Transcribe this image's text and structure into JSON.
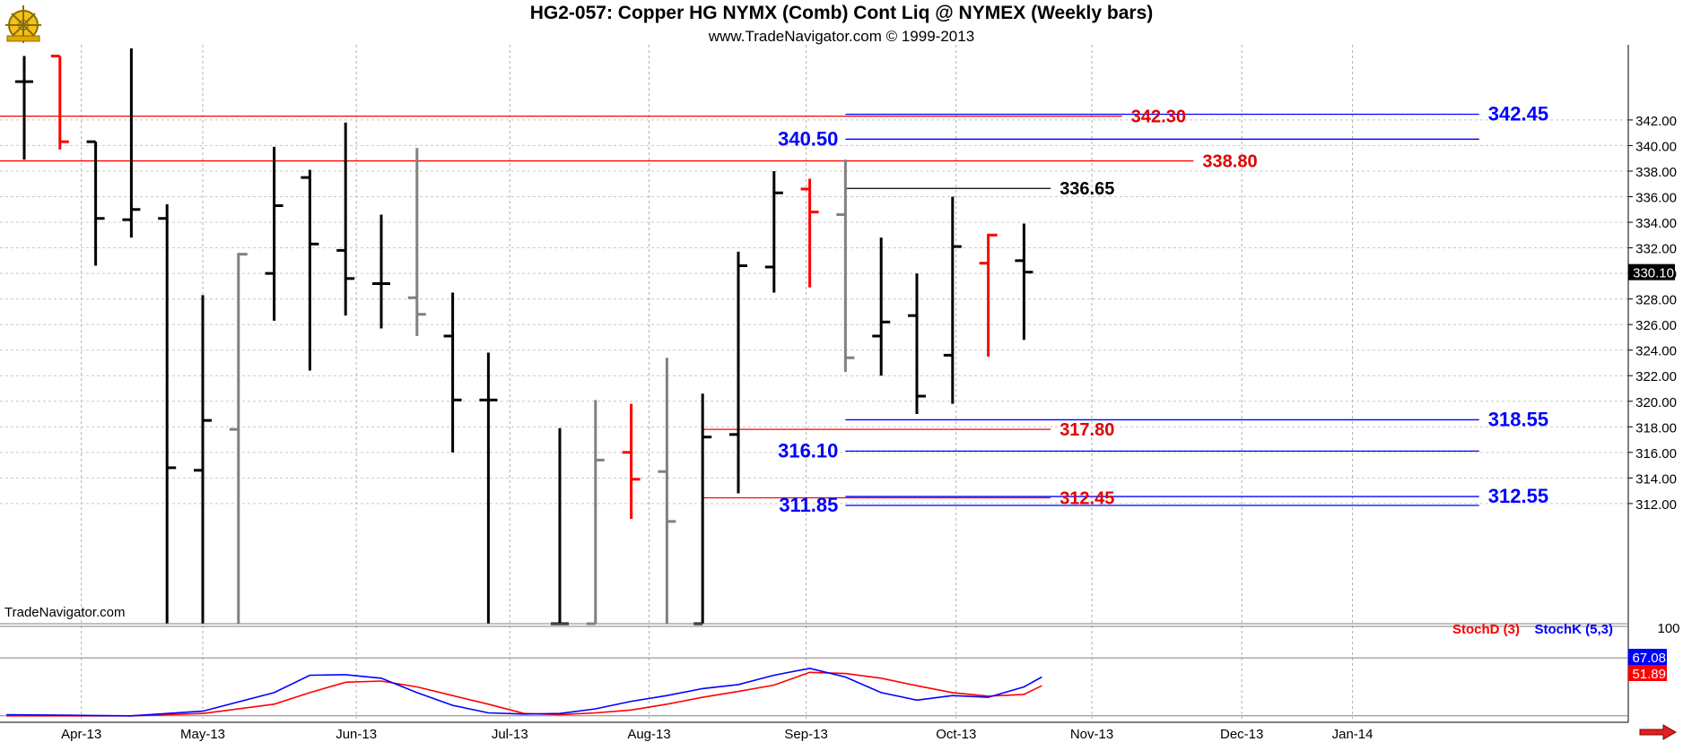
{
  "header": {
    "title": "HG2-057:  Copper HG NYMX (Comb) Cont Liq @ NYMEX  (Weekly bars)",
    "subtitle": "www.TradeNavigator.com © 1999-2013",
    "watermark": "TradeNavigator.com"
  },
  "colors": {
    "up_bar": "#000000",
    "down_bar": "#ff0000",
    "inside_bar": "#808080",
    "level_red": "#ff0000",
    "level_blue": "#0000ff",
    "stoch_d": "#ff0000",
    "stoch_k": "#0000ff"
  },
  "chart_data": [
    {
      "type": "ohlc",
      "title": "HG2-057:  Copper HG NYMX (Comb) Cont Liq @ NYMEX  (Weekly bars)",
      "ylim": [
        302.6,
        347.6
      ],
      "y_ticks": [
        "342.00",
        "340.00",
        "338.00",
        "336.00",
        "334.00",
        "332.00",
        "330.00",
        "328.00",
        "326.00",
        "324.00",
        "322.00",
        "320.00",
        "318.00",
        "316.00",
        "314.00",
        "312.00"
      ],
      "x_ticks": [
        "Apr-13",
        "May-13",
        "Jun-13",
        "Jul-13",
        "Aug-13",
        "Sep-13",
        "Oct-13",
        "Nov-13",
        "Dec-13",
        "Jan-14"
      ],
      "last_price": "330.10",
      "bars": [
        {
          "week": 0,
          "o": 345.0,
          "h": 347.0,
          "l": 338.9,
          "c": 345.0,
          "color": "up"
        },
        {
          "week": 1,
          "o": 347.0,
          "h": 347.0,
          "l": 339.7,
          "c": 340.3,
          "color": "down"
        },
        {
          "week": 2,
          "o": 340.3,
          "h": 340.3,
          "l": 330.6,
          "c": 334.3,
          "color": "up"
        },
        {
          "week": 3,
          "o": 334.2,
          "h": 347.6,
          "l": 332.8,
          "c": 335.0,
          "color": "up"
        },
        {
          "week": 4,
          "o": 334.3,
          "h": 335.4,
          "l": 302.6,
          "c": 314.8,
          "color": "up"
        },
        {
          "week": 5,
          "o": 314.6,
          "h": 328.3,
          "l": 302.6,
          "c": 318.5,
          "color": "up"
        },
        {
          "week": 6,
          "o": 317.8,
          "h": 331.6,
          "l": 302.6,
          "c": 331.5,
          "color": "inside"
        },
        {
          "week": 7,
          "o": 330.0,
          "h": 339.9,
          "l": 326.3,
          "c": 335.3,
          "color": "up"
        },
        {
          "week": 8,
          "o": 337.5,
          "h": 338.1,
          "l": 322.4,
          "c": 332.3,
          "color": "up"
        },
        {
          "week": 9,
          "o": 331.8,
          "h": 341.8,
          "l": 326.7,
          "c": 329.6,
          "color": "up"
        },
        {
          "week": 10,
          "o": 329.2,
          "h": 334.6,
          "l": 325.7,
          "c": 329.2,
          "color": "up"
        },
        {
          "week": 11,
          "o": 328.1,
          "h": 339.8,
          "l": 325.1,
          "c": 326.8,
          "color": "inside"
        },
        {
          "week": 12,
          "o": 325.1,
          "h": 328.5,
          "l": 316.0,
          "c": 320.1,
          "color": "up"
        },
        {
          "week": 13,
          "o": 320.1,
          "h": 323.8,
          "l": 302.6,
          "c": 320.1,
          "color": "up"
        },
        {
          "week": 15,
          "o": 302.6,
          "h": 317.9,
          "l": 302.6,
          "c": 302.6,
          "color": "up"
        },
        {
          "week": 16,
          "o": 302.6,
          "h": 320.1,
          "l": 302.6,
          "c": 315.4,
          "color": "inside"
        },
        {
          "week": 17,
          "o": 316.0,
          "h": 319.8,
          "l": 310.8,
          "c": 313.9,
          "color": "down"
        },
        {
          "week": 18,
          "o": 314.5,
          "h": 323.4,
          "l": 302.6,
          "c": 310.6,
          "color": "inside"
        },
        {
          "week": 19,
          "o": 302.6,
          "h": 320.6,
          "l": 302.6,
          "c": 317.2,
          "color": "up"
        },
        {
          "week": 20,
          "o": 317.4,
          "h": 331.7,
          "l": 312.8,
          "c": 330.6,
          "color": "up"
        },
        {
          "week": 21,
          "o": 330.5,
          "h": 338.0,
          "l": 328.5,
          "c": 336.3,
          "color": "up"
        },
        {
          "week": 22,
          "o": 336.6,
          "h": 337.4,
          "l": 328.9,
          "c": 334.8,
          "color": "down"
        },
        {
          "week": 23,
          "o": 334.6,
          "h": 338.9,
          "l": 322.3,
          "c": 323.4,
          "color": "inside"
        },
        {
          "week": 24,
          "o": 325.1,
          "h": 332.8,
          "l": 322.0,
          "c": 326.2,
          "color": "up"
        },
        {
          "week": 25,
          "o": 326.7,
          "h": 330.0,
          "l": 319.0,
          "c": 320.4,
          "color": "up"
        },
        {
          "week": 26,
          "o": 323.6,
          "h": 336.0,
          "l": 319.8,
          "c": 332.1,
          "color": "up"
        },
        {
          "week": 27,
          "o": 330.8,
          "h": 333.1,
          "l": 323.5,
          "c": 333.0,
          "color": "down"
        },
        {
          "week": 28,
          "o": 331.0,
          "h": 333.9,
          "l": 324.8,
          "c": 330.1,
          "color": "up"
        }
      ],
      "levels": [
        {
          "value": 342.45,
          "label": "342.45",
          "color": "blue",
          "from_week": 23,
          "to_week": 41,
          "label_at": "end"
        },
        {
          "value": 342.3,
          "label": "342.30",
          "color": "red",
          "from_week": -1,
          "to_week": 31,
          "label_at": "end"
        },
        {
          "value": 340.5,
          "label": "340.50",
          "color": "blue",
          "from_week": 23,
          "to_week": 41,
          "label_at": "start"
        },
        {
          "value": 338.8,
          "label": "338.80",
          "color": "red",
          "from_week": -1,
          "to_week": 33,
          "label_at": "end"
        },
        {
          "value": 336.65,
          "label": "336.65",
          "color": "black",
          "from_week": 23,
          "to_week": 29,
          "label_at": "end"
        },
        {
          "value": 318.55,
          "label": "318.55",
          "color": "blue",
          "from_week": 23,
          "to_week": 41,
          "label_at": "end"
        },
        {
          "value": 317.8,
          "label": "317.80",
          "color": "red",
          "from_week": 19,
          "to_week": 29,
          "label_at": "end"
        },
        {
          "value": 316.1,
          "label": "316.10",
          "color": "blue",
          "from_week": 23,
          "to_week": 41,
          "label_at": "start"
        },
        {
          "value": 312.55,
          "label": "312.55",
          "color": "blue",
          "from_week": 23,
          "to_week": 41,
          "label_at": "end"
        },
        {
          "value": 312.45,
          "label": "312.45",
          "color": "red",
          "from_week": 19,
          "to_week": 29,
          "label_at": "end"
        },
        {
          "value": 311.85,
          "label": "311.85",
          "color": "blue",
          "from_week": 23,
          "to_week": 41,
          "label_at": "start"
        }
      ]
    },
    {
      "type": "line",
      "panel": "stochastic",
      "ylim": [
        -5,
        125
      ],
      "top_label": "100",
      "series": [
        {
          "name": "StochD (3)",
          "color": "red",
          "last": "51.89",
          "values": [
            [
              -0.5,
              0
            ],
            [
              1,
              0
            ],
            [
              3,
              0
            ],
            [
              5,
              4
            ],
            [
              7,
              20
            ],
            [
              8,
              40
            ],
            [
              9,
              58
            ],
            [
              10,
              60
            ],
            [
              11,
              50
            ],
            [
              12,
              35
            ],
            [
              13,
              20
            ],
            [
              14,
              4
            ],
            [
              15,
              2
            ],
            [
              16,
              5
            ],
            [
              17,
              10
            ],
            [
              18,
              20
            ],
            [
              19,
              32
            ],
            [
              20,
              42
            ],
            [
              21,
              53
            ],
            [
              22,
              75
            ],
            [
              23,
              73
            ],
            [
              24,
              65
            ],
            [
              25,
              52
            ],
            [
              26,
              40
            ],
            [
              27,
              34
            ],
            [
              28,
              37
            ],
            [
              28.5,
              52
            ]
          ]
        },
        {
          "name": "StochK (5,3)",
          "color": "blue",
          "last": "67.08",
          "values": [
            [
              -0.5,
              2
            ],
            [
              1,
              1
            ],
            [
              3,
              0
            ],
            [
              5,
              8
            ],
            [
              7,
              40
            ],
            [
              8,
              70
            ],
            [
              9,
              71
            ],
            [
              10,
              65
            ],
            [
              11,
              40
            ],
            [
              12,
              18
            ],
            [
              13,
              5
            ],
            [
              14,
              3
            ],
            [
              15,
              4
            ],
            [
              16,
              12
            ],
            [
              17,
              25
            ],
            [
              18,
              35
            ],
            [
              19,
              47
            ],
            [
              20,
              54
            ],
            [
              21,
              70
            ],
            [
              22,
              82
            ],
            [
              23,
              67
            ],
            [
              24,
              40
            ],
            [
              25,
              27
            ],
            [
              26,
              35
            ],
            [
              27,
              32
            ],
            [
              28,
              50
            ],
            [
              28.5,
              67
            ]
          ]
        }
      ]
    }
  ]
}
